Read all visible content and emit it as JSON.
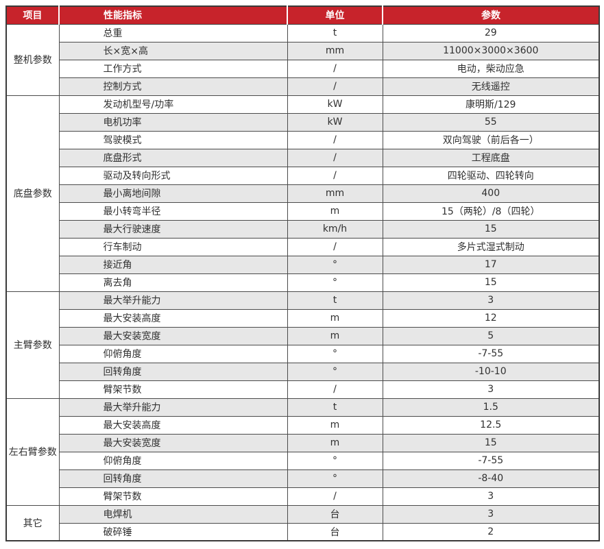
{
  "colors": {
    "header_bg": "#C7232B",
    "header_text": "#FFFFFF",
    "row_alt_bg": "#E7E7E7",
    "border": "#4A4A4A",
    "text": "#303030"
  },
  "header": {
    "columns": [
      "项目",
      "性能指标",
      "单位",
      "参数"
    ]
  },
  "groups": [
    {
      "label": "整机参数",
      "rows": [
        [
          "总重",
          "t",
          "29"
        ],
        [
          "长×宽×高",
          "mm",
          "11000×3000×3600"
        ],
        [
          "工作方式",
          "/",
          "电动，柴动应急"
        ],
        [
          "控制方式",
          "/",
          "无线遥控"
        ]
      ]
    },
    {
      "label": "底盘参数",
      "rows": [
        [
          "发动机型号/功率",
          "kW",
          "康明斯/129"
        ],
        [
          "电机功率",
          "kW",
          "55"
        ],
        [
          "驾驶模式",
          "/",
          "双向驾驶（前后各一）"
        ],
        [
          "底盘形式",
          "/",
          "工程底盘"
        ],
        [
          "驱动及转向形式",
          "/",
          "四轮驱动、四轮转向"
        ],
        [
          "最小离地间隙",
          "mm",
          "400"
        ],
        [
          "最小转弯半径",
          "m",
          "15（两轮）/8（四轮）"
        ],
        [
          "最大行驶速度",
          "km/h",
          "15"
        ],
        [
          "行车制动",
          "/",
          "多片式湿式制动"
        ],
        [
          "接近角",
          "°",
          "17"
        ],
        [
          "离去角",
          "°",
          "15"
        ]
      ]
    },
    {
      "label": "主臂参数",
      "rows": [
        [
          "最大举升能力",
          "t",
          "3"
        ],
        [
          "最大安装高度",
          "m",
          "12"
        ],
        [
          "最大安装宽度",
          "m",
          "5"
        ],
        [
          "仰俯角度",
          "°",
          "-7-55"
        ],
        [
          "回转角度",
          "°",
          "-10-10"
        ],
        [
          "臂架节数",
          "/",
          "3"
        ]
      ]
    },
    {
      "label": "左右臂参数",
      "rows": [
        [
          "最大举升能力",
          "t",
          "1.5"
        ],
        [
          "最大安装高度",
          "m",
          "12.5"
        ],
        [
          "最大安装宽度",
          "m",
          "15"
        ],
        [
          "仰俯角度",
          "°",
          "-7-55"
        ],
        [
          "回转角度",
          "°",
          "-8-40"
        ],
        [
          "臂架节数",
          "/",
          "3"
        ]
      ]
    },
    {
      "label": "其它",
      "rows": [
        [
          "电焊机",
          "台",
          "3"
        ],
        [
          "破碎锤",
          "台",
          "2"
        ]
      ]
    }
  ]
}
